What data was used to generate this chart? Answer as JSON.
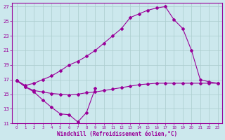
{
  "xlabel": "Windchill (Refroidissement éolien,°C)",
  "background_color": "#cce8ed",
  "grid_color": "#aacccc",
  "line_color": "#990099",
  "xlim": [
    -0.5,
    23.5
  ],
  "ylim": [
    11,
    27.5
  ],
  "xticks": [
    0,
    1,
    2,
    3,
    4,
    5,
    6,
    7,
    8,
    9,
    10,
    11,
    12,
    13,
    14,
    15,
    16,
    17,
    18,
    19,
    20,
    21,
    22,
    23
  ],
  "yticks": [
    11,
    13,
    15,
    17,
    19,
    21,
    23,
    25,
    27
  ],
  "series1_x": [
    0,
    1,
    2,
    3,
    4,
    5,
    6,
    7,
    8,
    9
  ],
  "series1_y": [
    16.9,
    16.0,
    15.3,
    14.2,
    13.2,
    12.3,
    12.2,
    11.2,
    12.5,
    15.8
  ],
  "series2_x": [
    0,
    1,
    2,
    3,
    4,
    5,
    6,
    7,
    8,
    9,
    10,
    11,
    12,
    13,
    14,
    15,
    16,
    17,
    18,
    19,
    20,
    21,
    22,
    23
  ],
  "series2_y": [
    16.9,
    16.0,
    15.5,
    15.3,
    15.1,
    15.0,
    14.9,
    15.0,
    15.2,
    15.3,
    15.5,
    15.7,
    15.9,
    16.1,
    16.3,
    16.4,
    16.5,
    16.5,
    16.5,
    16.5,
    16.5,
    16.5,
    16.5,
    16.5
  ],
  "series3_x": [
    0,
    1,
    2,
    3,
    4,
    5,
    6,
    7,
    8,
    9,
    10,
    11,
    12,
    13,
    14,
    15,
    16,
    17,
    18,
    19,
    20,
    21,
    22,
    23
  ],
  "series3_y": [
    16.9,
    16.2,
    16.5,
    17.0,
    17.5,
    18.2,
    19.0,
    19.5,
    20.2,
    21.0,
    22.0,
    23.0,
    24.0,
    25.5,
    26.0,
    26.5,
    26.8,
    27.0,
    25.2,
    24.0,
    21.0,
    17.0,
    16.7,
    16.5
  ]
}
